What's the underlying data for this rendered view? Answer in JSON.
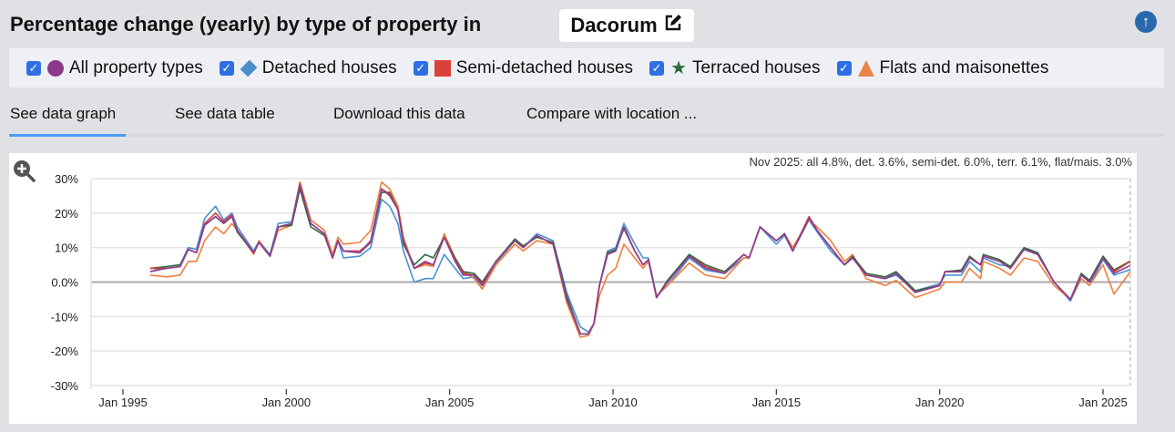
{
  "header": {
    "title": "Percentage change (yearly) by type of property in",
    "location": "Dacorum",
    "edit_icon": "edit-icon",
    "top_icon": "arrow-up-icon"
  },
  "legend": [
    {
      "label": "All property types",
      "marker": "circle",
      "color": "#8b3a8b",
      "checked": true
    },
    {
      "label": "Detached houses",
      "marker": "diamond",
      "color": "#4a8fc9",
      "checked": true
    },
    {
      "label": "Semi-detached houses",
      "marker": "square",
      "color": "#d9413a",
      "checked": true
    },
    {
      "label": "Terraced houses",
      "marker": "star",
      "color": "#2e6b3a",
      "checked": true
    },
    {
      "label": "Flats and maisonettes",
      "marker": "triangle",
      "color": "#e8834a",
      "checked": true
    }
  ],
  "tabs": [
    {
      "label": "See data graph",
      "active": true
    },
    {
      "label": "See data table"
    },
    {
      "label": "Download this data"
    },
    {
      "label": "Compare with location ..."
    }
  ],
  "chart_data": {
    "type": "line",
    "summary": "Nov 2025: all 4.8%, det. 3.6%, semi-det. 6.0%, terr. 6.1%, flat/mais. 3.0%",
    "ylim": [
      -30,
      30
    ],
    "yticks": [
      "30%",
      "20%",
      "10%",
      "0.0%",
      "-10%",
      "-20%",
      "-30%"
    ],
    "ytick_values": [
      30,
      20,
      10,
      0,
      -10,
      -20,
      -30
    ],
    "xticks": [
      "Jan 1995",
      "Jan 2000",
      "Jan 2005",
      "Jan 2010",
      "Jan 2015",
      "Jan 2020",
      "Jan 2025"
    ],
    "xlim": [
      "1993-09",
      "2025-12"
    ],
    "grid": true,
    "dates": [
      "1995-11",
      "1996-05",
      "1996-10",
      "1997-01",
      "1997-04",
      "1997-07",
      "1997-11",
      "1998-02",
      "1998-05",
      "1998-07",
      "1999-01",
      "1999-03",
      "1999-07",
      "1999-10",
      "2000-03",
      "2000-06",
      "2000-10",
      "2001-03",
      "2001-06",
      "2001-08",
      "2001-10",
      "2002-04",
      "2002-08",
      "2002-12",
      "2003-03",
      "2003-06",
      "2003-08",
      "2003-12",
      "2004-04",
      "2004-07",
      "2004-11",
      "2005-03",
      "2005-06",
      "2005-10",
      "2006-01",
      "2006-06",
      "2007-01",
      "2007-04",
      "2007-09",
      "2008-03",
      "2008-08",
      "2009-01",
      "2009-04",
      "2009-06",
      "2009-08",
      "2009-11",
      "2010-02",
      "2010-05",
      "2010-09",
      "2010-12",
      "2011-02",
      "2011-05",
      "2011-09",
      "2012-05",
      "2012-11",
      "2013-06",
      "2014-01",
      "2014-03",
      "2014-07",
      "2015-01",
      "2015-04",
      "2015-07",
      "2016-01",
      "2016-04",
      "2016-09",
      "2017-02",
      "2017-05",
      "2017-10",
      "2018-05",
      "2018-09",
      "2019-04",
      "2020-01",
      "2020-03",
      "2020-09",
      "2020-12",
      "2021-04",
      "2021-05",
      "2021-11",
      "2022-03",
      "2022-08",
      "2023-01",
      "2023-07",
      "2024-01",
      "2024-05",
      "2024-08",
      "2025-01",
      "2025-05",
      "2025-11"
    ],
    "series": [
      {
        "name": "Detached houses",
        "color": "#4a90d0",
        "values": [
          3,
          4.5,
          5,
          10,
          9.5,
          18.5,
          22,
          18,
          20,
          16,
          9,
          12,
          8,
          17,
          17.5,
          29,
          18,
          15,
          8,
          12,
          7,
          7.5,
          10,
          24,
          22,
          17,
          9,
          0,
          1,
          1,
          8,
          4,
          1,
          1.5,
          -2,
          5.5,
          12,
          10,
          14,
          12,
          -3,
          -13,
          -14.5,
          -12,
          -1,
          9,
          10,
          17,
          11,
          7,
          7,
          -4,
          -1,
          7,
          3.5,
          2.5,
          7,
          7,
          16,
          11,
          13.5,
          9,
          18,
          14.5,
          9,
          5,
          7,
          2,
          1,
          2,
          -2.5,
          -0.5,
          2,
          2,
          6,
          3,
          7,
          5,
          4.5,
          9.5,
          8.5,
          0,
          -5.5,
          1,
          -1,
          6.5,
          2,
          3.6
        ]
      },
      {
        "name": "Flats and maisonettes",
        "color": "#f07f3c",
        "values": [
          2,
          1.5,
          2,
          6,
          6,
          12,
          16,
          14,
          17,
          15,
          8,
          12,
          7.5,
          15,
          16.5,
          29,
          18,
          15,
          8,
          13,
          11,
          11.5,
          15,
          29,
          27,
          22,
          13,
          4,
          5,
          4.5,
          14,
          7,
          3,
          1,
          -2,
          5,
          11,
          9,
          12,
          11,
          -6,
          -16,
          -15.5,
          -12,
          -4,
          2,
          4,
          11,
          7,
          4,
          6,
          -4,
          -1,
          5.5,
          2,
          1,
          7,
          7,
          16,
          12,
          14,
          10,
          18,
          16,
          12,
          6,
          8,
          1,
          -1,
          0.5,
          -4.5,
          -2,
          0,
          0,
          4,
          1,
          6,
          4,
          2,
          7,
          6,
          -1,
          -5,
          1,
          -1,
          5,
          -3.5,
          3.0
        ]
      },
      {
        "name": "Terraced houses",
        "color": "#2b6b35",
        "values": [
          4,
          4.5,
          5,
          9.5,
          8.5,
          16.5,
          19,
          17,
          19,
          14.5,
          8.5,
          11.5,
          7.5,
          16,
          16.5,
          27,
          16,
          13.5,
          7,
          12,
          9,
          8.5,
          11.5,
          26,
          26,
          21,
          11,
          5,
          8,
          7,
          13,
          7,
          3,
          2.5,
          0,
          6,
          12.5,
          10.5,
          13,
          11.5,
          -4,
          -15,
          -15,
          -12,
          -1,
          8.5,
          9.5,
          15.5,
          9,
          5,
          6.5,
          -4.5,
          0.5,
          8,
          5,
          3,
          8,
          7,
          16,
          12,
          14,
          9,
          18.5,
          15,
          10,
          5,
          7.5,
          2.5,
          1.5,
          3,
          -2.5,
          -1,
          3,
          3.5,
          7.5,
          5,
          8,
          6.5,
          4.5,
          10,
          8.5,
          0,
          -5,
          2.5,
          0.5,
          7.5,
          3.5,
          6.1
        ]
      },
      {
        "name": "Semi-detached houses",
        "color": "#d63b3b",
        "values": [
          4,
          4,
          4.5,
          9.5,
          8.5,
          17,
          20,
          17.5,
          19.5,
          15,
          8.5,
          11.5,
          7.5,
          16,
          17,
          28.5,
          17,
          14,
          7,
          12,
          9,
          9,
          11.5,
          27,
          25.5,
          21,
          12,
          4,
          5.5,
          5,
          13,
          6.5,
          2.5,
          2,
          -0.5,
          6,
          12,
          10,
          13.5,
          11,
          -5,
          -15,
          -15,
          -12,
          -1,
          8,
          9,
          16,
          9,
          5,
          6.5,
          -4.5,
          0,
          7.5,
          4.5,
          2.5,
          8,
          7,
          16,
          12,
          14,
          9,
          19,
          15,
          10,
          5,
          7,
          2,
          1,
          2.5,
          -3,
          -1,
          3,
          3,
          7,
          5,
          7.5,
          6,
          4,
          9.5,
          8,
          0,
          -5,
          2,
          0,
          7,
          3,
          6.0
        ]
      },
      {
        "name": "All property types",
        "color": "#8e3d96",
        "values": [
          3,
          4,
          4.5,
          9.5,
          8.5,
          16.5,
          19,
          17,
          19,
          15,
          8.5,
          11.5,
          7.5,
          16,
          17,
          28,
          17,
          14,
          7,
          12,
          9,
          8.5,
          12,
          27,
          25,
          21,
          12,
          4,
          6,
          5,
          13,
          6,
          2,
          2,
          -1,
          6,
          12,
          10,
          13.5,
          11,
          -5,
          -15,
          -15,
          -12,
          -1,
          8,
          9,
          16,
          9,
          5,
          6.5,
          -4.5,
          0,
          7.5,
          4,
          2.5,
          8,
          7,
          16,
          12,
          14,
          9,
          18.5,
          15,
          10,
          5,
          7,
          2,
          1,
          2.5,
          -3,
          -1,
          3,
          3,
          7,
          5,
          7.5,
          6,
          4,
          9.5,
          8,
          0,
          -5,
          2,
          0,
          7,
          2.5,
          4.8
        ]
      }
    ]
  }
}
